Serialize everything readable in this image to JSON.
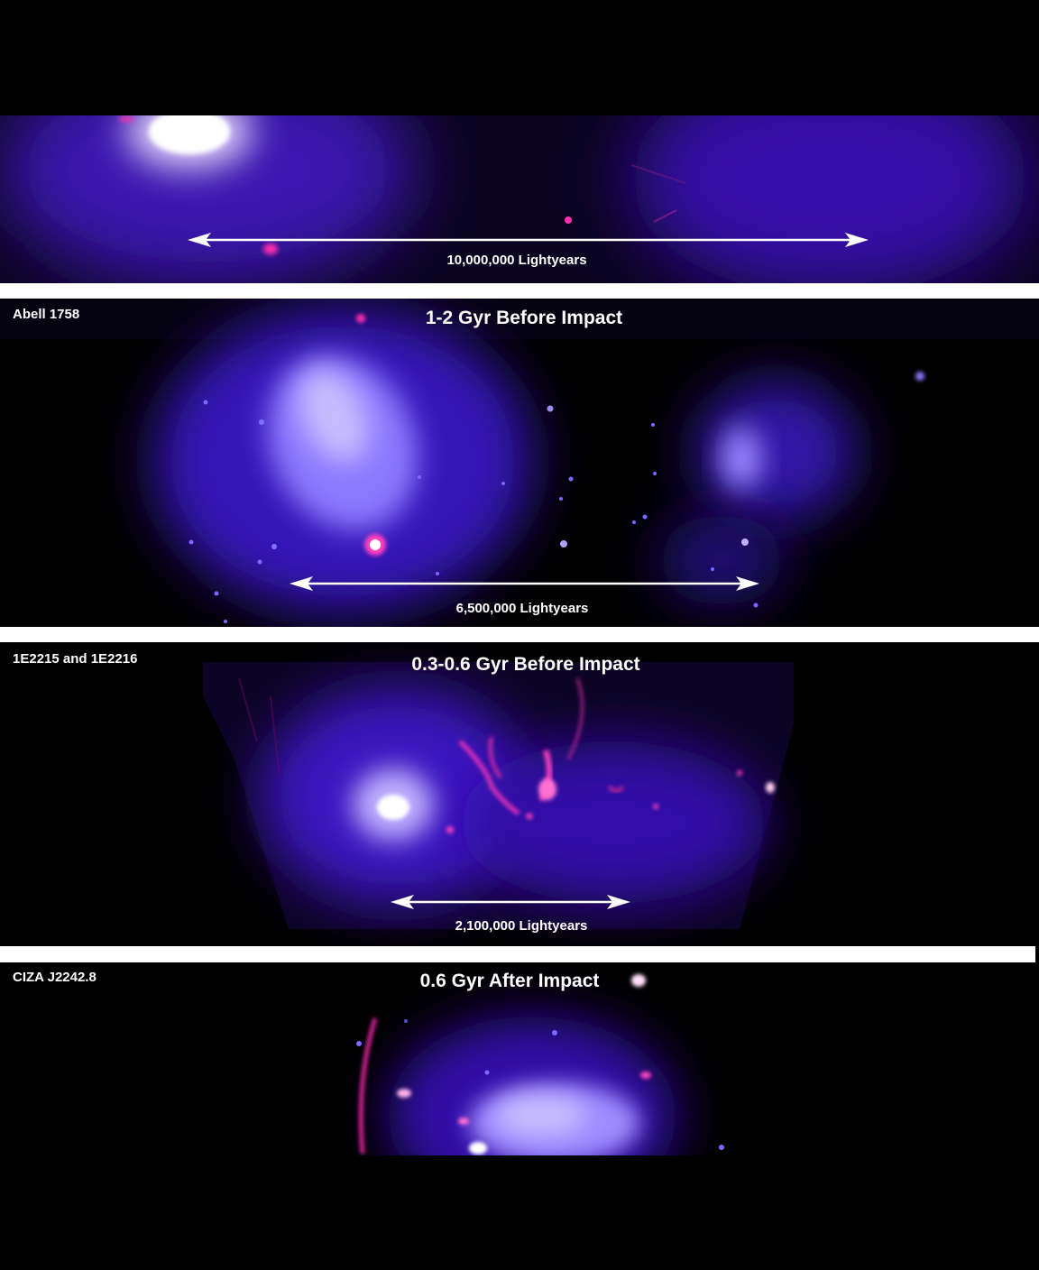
{
  "colors": {
    "background": "#000000",
    "divider": "#ffffff",
    "xray_emission": "#4b1fd8",
    "radio_emission": "#ff2fb0",
    "text": "#ffffff"
  },
  "panels": [
    {
      "cluster_name": "",
      "epoch_title": "",
      "scale_label": "10,000,000 Lightyears"
    },
    {
      "cluster_name": "Abell 1758",
      "epoch_title": "1-2 Gyr Before Impact",
      "scale_label": "6,500,000 Lightyears"
    },
    {
      "cluster_name": "1E2215 and 1E2216",
      "epoch_title": "0.3-0.6 Gyr Before Impact",
      "scale_label": "2,100,000 Lightyears"
    },
    {
      "cluster_name": "CIZA J2242.8",
      "epoch_title": "0.6 Gyr After Impact",
      "scale_label": ""
    }
  ]
}
